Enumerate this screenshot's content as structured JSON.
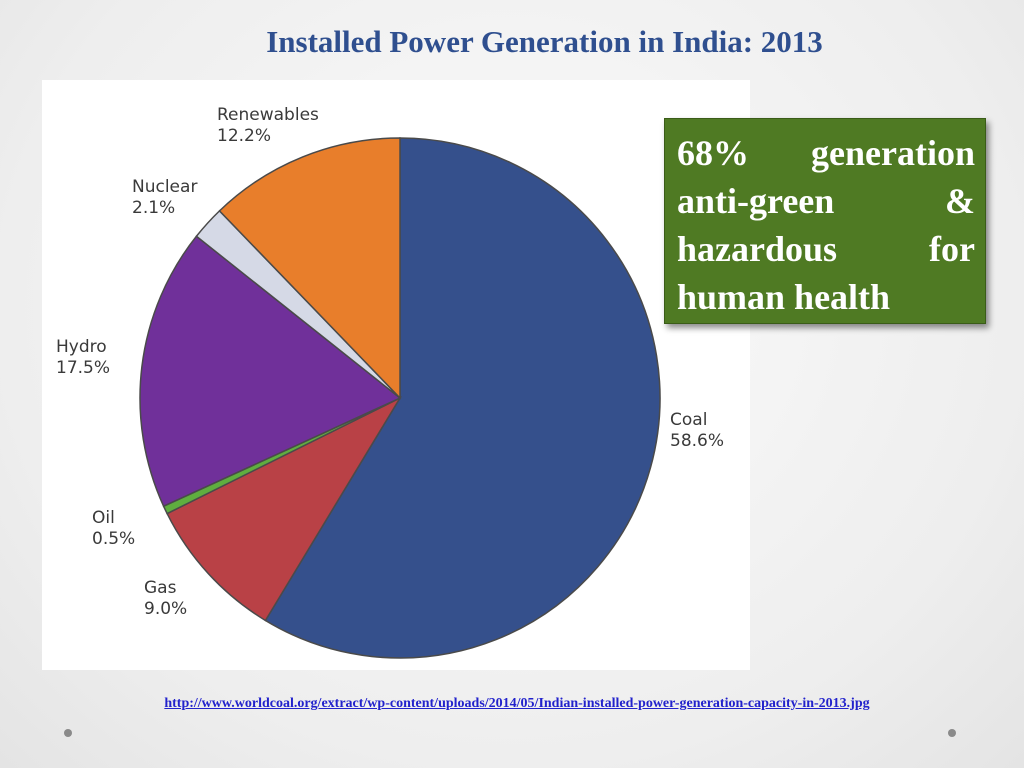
{
  "slide": {
    "title": "Installed Power Generation in India: 2013",
    "callout_text": "68% generation anti-green & hazardous for human health",
    "source_url": "http://www.worldcoal.org/extract/wp-content/uploads/2014/05/Indian-installed-power-generation-capacity-in-2013.jpg"
  },
  "chart_data": {
    "type": "pie",
    "title": "",
    "slices": [
      {
        "name": "Coal",
        "value_label": "58.6%",
        "value": 58.6,
        "color": "#35508c"
      },
      {
        "name": "Gas",
        "value_label": "9.0%",
        "value": 9.0,
        "color": "#b94146"
      },
      {
        "name": "Oil",
        "value_label": "0.5%",
        "value": 0.5,
        "color": "#5fae3f"
      },
      {
        "name": "Hydro",
        "value_label": "17.5%",
        "value": 17.5,
        "color": "#70309a"
      },
      {
        "name": "Nuclear",
        "value_label": "2.1%",
        "value": 2.1,
        "color": "#d5d9e6"
      },
      {
        "name": "Renewables",
        "value_label": "12.2%",
        "value": 12.2,
        "color": "#e87e2b"
      }
    ],
    "start_angle_deg": 0,
    "direction": "clockwise",
    "edge_color": "#4a4a4a"
  }
}
